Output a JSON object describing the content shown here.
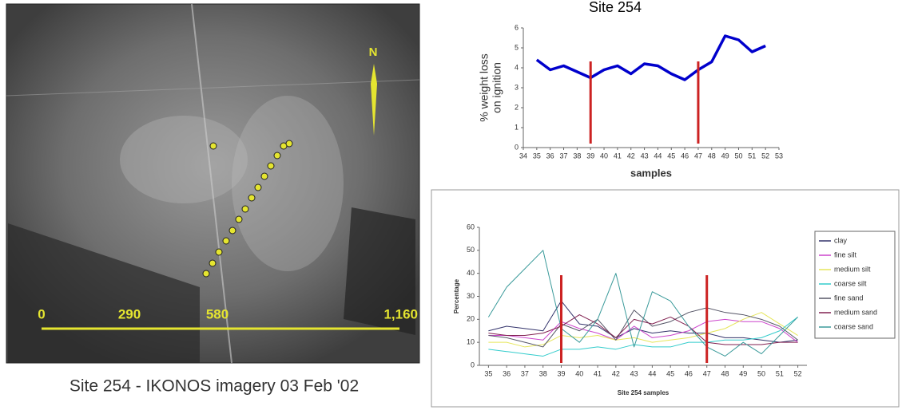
{
  "image": {
    "caption": "Site 254 - IKONOS imagery 03 Feb '02",
    "scale_labels": [
      "0",
      "290",
      "580",
      "1,160"
    ],
    "north_label": "N"
  },
  "chart_data": [
    {
      "type": "line",
      "title": "Site 254",
      "ylabel": [
        "% weight loss",
        "on ignition"
      ],
      "xlabel": "samples",
      "x": [
        35,
        36,
        37,
        38,
        39,
        40,
        41,
        42,
        43,
        44,
        45,
        46,
        47,
        48,
        49,
        50,
        51,
        52
      ],
      "values": [
        4.4,
        3.9,
        4.1,
        3.8,
        3.5,
        3.9,
        4.1,
        3.7,
        4.2,
        4.1,
        3.7,
        3.4,
        3.9,
        4.3,
        5.6,
        5.4,
        4.8,
        5.1
      ],
      "color": "#0000cc",
      "xlim": [
        34,
        53
      ],
      "xticks": [
        34,
        35,
        36,
        37,
        38,
        39,
        40,
        41,
        42,
        43,
        44,
        45,
        46,
        47,
        48,
        49,
        50,
        51,
        52,
        53
      ],
      "ylim": [
        0,
        6
      ],
      "yticks": [
        0,
        1,
        2,
        3,
        4,
        5,
        6
      ],
      "vlines": [
        39,
        47
      ],
      "vline_color": "#cc2222",
      "grid": false
    },
    {
      "type": "line",
      "ylabel": [
        "Percentage"
      ],
      "xlabel": "Site 254 samples",
      "x": [
        35,
        36,
        37,
        38,
        39,
        40,
        41,
        42,
        43,
        44,
        45,
        46,
        47,
        48,
        49,
        50,
        51,
        52
      ],
      "series": [
        {
          "name": "clay",
          "color": "#33336b",
          "values": [
            15,
            17,
            16,
            15,
            28,
            18,
            17,
            12,
            16,
            14,
            15,
            14,
            14,
            12,
            12,
            11,
            10,
            11
          ]
        },
        {
          "name": "fine silt",
          "color": "#cc44cc",
          "values": [
            13,
            13,
            12,
            11,
            19,
            16,
            14,
            11,
            17,
            12,
            13,
            15,
            19,
            20,
            19,
            19,
            16,
            10
          ]
        },
        {
          "name": "medium silt",
          "color": "#e6e65a",
          "values": [
            10,
            10,
            8,
            9,
            13,
            12,
            13,
            11,
            12,
            10,
            11,
            12,
            14,
            16,
            20,
            23,
            18,
            13
          ]
        },
        {
          "name": "coarse silt",
          "color": "#33cccc",
          "values": [
            7,
            6,
            5,
            4,
            7,
            7,
            8,
            7,
            9,
            8,
            8,
            10,
            10,
            11,
            11,
            12,
            15,
            21
          ]
        },
        {
          "name": "fine sand",
          "color": "#555566",
          "values": [
            13,
            12,
            10,
            8,
            18,
            15,
            20,
            11,
            24,
            17,
            19,
            23,
            25,
            23,
            22,
            20,
            17,
            11
          ]
        },
        {
          "name": "medium sand",
          "color": "#802050",
          "values": [
            14,
            13,
            13,
            14,
            17,
            22,
            18,
            12,
            20,
            18,
            21,
            17,
            10,
            9,
            9,
            9,
            10,
            10
          ]
        },
        {
          "name": "coarse sand",
          "color": "#3a9a9a",
          "values": [
            21,
            34,
            42,
            50,
            16,
            10,
            20,
            40,
            8,
            32,
            28,
            17,
            8,
            4,
            10,
            5,
            13,
            21
          ]
        }
      ],
      "xlim": [
        34.5,
        52.5
      ],
      "xticks": [
        35,
        36,
        37,
        38,
        39,
        40,
        41,
        42,
        43,
        44,
        45,
        46,
        47,
        48,
        49,
        50,
        51,
        52
      ],
      "ylim": [
        0,
        60
      ],
      "yticks": [
        0,
        10,
        20,
        30,
        40,
        50,
        60
      ],
      "vlines": [
        39,
        47
      ],
      "vline_color": "#cc2222",
      "grid": false,
      "legend": "right"
    }
  ]
}
